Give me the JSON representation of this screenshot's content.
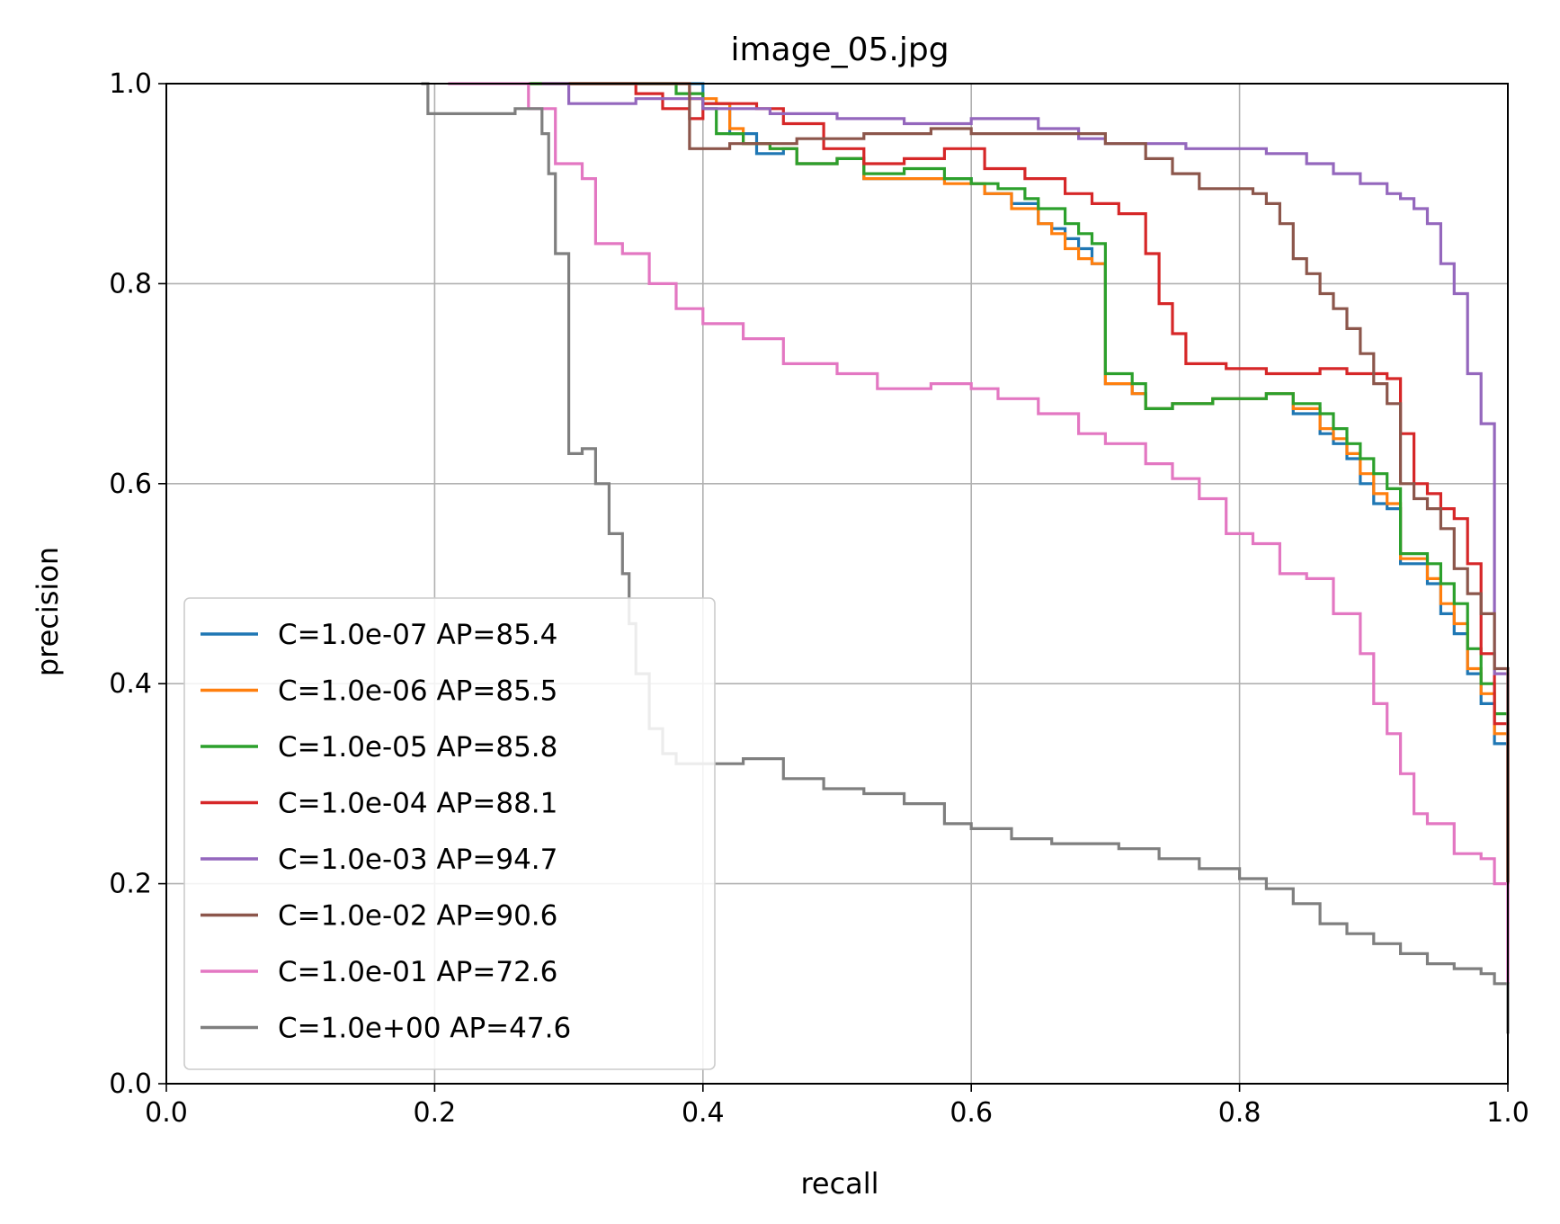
{
  "chart_data": {
    "type": "line",
    "title": "image_05.jpg",
    "xlabel": "recall",
    "ylabel": "precision",
    "xlim": [
      0.0,
      1.0
    ],
    "ylim": [
      0.0,
      1.0
    ],
    "xticks": [
      "0.0",
      "0.2",
      "0.4",
      "0.6",
      "0.8",
      "1.0"
    ],
    "yticks": [
      "0.0",
      "0.2",
      "0.4",
      "0.6",
      "0.8",
      "1.0"
    ],
    "grid": true,
    "legend_position": "lower-left",
    "series": [
      {
        "name": "C=1.0e-07 AP=85.4",
        "color": "#1f77b4",
        "points": [
          [
            0.27,
            1.0
          ],
          [
            0.38,
            1.0
          ],
          [
            0.4,
            0.98
          ],
          [
            0.42,
            0.95
          ],
          [
            0.44,
            0.93
          ],
          [
            0.46,
            0.935
          ],
          [
            0.47,
            0.92
          ],
          [
            0.5,
            0.925
          ],
          [
            0.52,
            0.905
          ],
          [
            0.55,
            0.905
          ],
          [
            0.58,
            0.905
          ],
          [
            0.6,
            0.9
          ],
          [
            0.61,
            0.89
          ],
          [
            0.63,
            0.88
          ],
          [
            0.65,
            0.86
          ],
          [
            0.66,
            0.855
          ],
          [
            0.67,
            0.845
          ],
          [
            0.68,
            0.835
          ],
          [
            0.69,
            0.82
          ],
          [
            0.7,
            0.7
          ],
          [
            0.72,
            0.69
          ],
          [
            0.73,
            0.675
          ],
          [
            0.75,
            0.68
          ],
          [
            0.78,
            0.685
          ],
          [
            0.82,
            0.69
          ],
          [
            0.84,
            0.67
          ],
          [
            0.86,
            0.65
          ],
          [
            0.87,
            0.64
          ],
          [
            0.88,
            0.625
          ],
          [
            0.89,
            0.6
          ],
          [
            0.9,
            0.58
          ],
          [
            0.91,
            0.575
          ],
          [
            0.92,
            0.52
          ],
          [
            0.94,
            0.5
          ],
          [
            0.95,
            0.47
          ],
          [
            0.96,
            0.45
          ],
          [
            0.97,
            0.41
          ],
          [
            0.98,
            0.38
          ],
          [
            0.99,
            0.34
          ],
          [
            1.0,
            0.33
          ],
          [
            1.0,
            0.2
          ]
        ]
      },
      {
        "name": "C=1.0e-06 AP=85.5",
        "color": "#ff7f0e",
        "points": [
          [
            0.27,
            1.0
          ],
          [
            0.38,
            1.0
          ],
          [
            0.39,
            0.985
          ],
          [
            0.41,
            0.98
          ],
          [
            0.42,
            0.955
          ],
          [
            0.43,
            0.94
          ],
          [
            0.45,
            0.935
          ],
          [
            0.47,
            0.92
          ],
          [
            0.5,
            0.925
          ],
          [
            0.52,
            0.905
          ],
          [
            0.55,
            0.905
          ],
          [
            0.58,
            0.9
          ],
          [
            0.6,
            0.9
          ],
          [
            0.61,
            0.89
          ],
          [
            0.63,
            0.875
          ],
          [
            0.65,
            0.86
          ],
          [
            0.66,
            0.85
          ],
          [
            0.67,
            0.835
          ],
          [
            0.68,
            0.825
          ],
          [
            0.69,
            0.82
          ],
          [
            0.7,
            0.7
          ],
          [
            0.72,
            0.69
          ],
          [
            0.73,
            0.675
          ],
          [
            0.75,
            0.68
          ],
          [
            0.78,
            0.685
          ],
          [
            0.82,
            0.69
          ],
          [
            0.84,
            0.675
          ],
          [
            0.86,
            0.655
          ],
          [
            0.87,
            0.645
          ],
          [
            0.88,
            0.63
          ],
          [
            0.89,
            0.61
          ],
          [
            0.9,
            0.59
          ],
          [
            0.91,
            0.58
          ],
          [
            0.92,
            0.525
          ],
          [
            0.94,
            0.505
          ],
          [
            0.95,
            0.48
          ],
          [
            0.96,
            0.46
          ],
          [
            0.97,
            0.415
          ],
          [
            0.98,
            0.39
          ],
          [
            0.99,
            0.35
          ],
          [
            1.0,
            0.34
          ],
          [
            1.0,
            0.2
          ]
        ]
      },
      {
        "name": "C=1.0e-05 AP=85.8",
        "color": "#2ca02c",
        "points": [
          [
            0.27,
            1.0
          ],
          [
            0.37,
            1.0
          ],
          [
            0.38,
            0.99
          ],
          [
            0.4,
            0.975
          ],
          [
            0.41,
            0.95
          ],
          [
            0.43,
            0.94
          ],
          [
            0.45,
            0.935
          ],
          [
            0.47,
            0.92
          ],
          [
            0.5,
            0.925
          ],
          [
            0.52,
            0.91
          ],
          [
            0.55,
            0.915
          ],
          [
            0.58,
            0.905
          ],
          [
            0.6,
            0.9
          ],
          [
            0.62,
            0.895
          ],
          [
            0.64,
            0.885
          ],
          [
            0.65,
            0.875
          ],
          [
            0.67,
            0.86
          ],
          [
            0.68,
            0.85
          ],
          [
            0.69,
            0.84
          ],
          [
            0.7,
            0.71
          ],
          [
            0.72,
            0.7
          ],
          [
            0.73,
            0.675
          ],
          [
            0.75,
            0.68
          ],
          [
            0.78,
            0.685
          ],
          [
            0.82,
            0.69
          ],
          [
            0.84,
            0.68
          ],
          [
            0.86,
            0.67
          ],
          [
            0.87,
            0.655
          ],
          [
            0.88,
            0.64
          ],
          [
            0.89,
            0.625
          ],
          [
            0.9,
            0.61
          ],
          [
            0.91,
            0.595
          ],
          [
            0.92,
            0.53
          ],
          [
            0.94,
            0.52
          ],
          [
            0.95,
            0.5
          ],
          [
            0.96,
            0.48
          ],
          [
            0.97,
            0.435
          ],
          [
            0.98,
            0.4
          ],
          [
            0.99,
            0.37
          ],
          [
            1.0,
            0.35
          ],
          [
            1.0,
            0.2
          ]
        ]
      },
      {
        "name": "C=1.0e-04 AP=88.1",
        "color": "#d62728",
        "points": [
          [
            0.28,
            1.0
          ],
          [
            0.34,
            1.0
          ],
          [
            0.35,
            0.99
          ],
          [
            0.37,
            0.975
          ],
          [
            0.39,
            0.965
          ],
          [
            0.4,
            0.98
          ],
          [
            0.44,
            0.975
          ],
          [
            0.46,
            0.96
          ],
          [
            0.49,
            0.935
          ],
          [
            0.52,
            0.92
          ],
          [
            0.55,
            0.925
          ],
          [
            0.58,
            0.935
          ],
          [
            0.61,
            0.915
          ],
          [
            0.64,
            0.905
          ],
          [
            0.67,
            0.89
          ],
          [
            0.69,
            0.88
          ],
          [
            0.71,
            0.87
          ],
          [
            0.73,
            0.83
          ],
          [
            0.74,
            0.78
          ],
          [
            0.75,
            0.75
          ],
          [
            0.76,
            0.72
          ],
          [
            0.79,
            0.715
          ],
          [
            0.82,
            0.71
          ],
          [
            0.86,
            0.715
          ],
          [
            0.88,
            0.71
          ],
          [
            0.9,
            0.71
          ],
          [
            0.91,
            0.705
          ],
          [
            0.92,
            0.65
          ],
          [
            0.93,
            0.6
          ],
          [
            0.94,
            0.59
          ],
          [
            0.95,
            0.575
          ],
          [
            0.96,
            0.565
          ],
          [
            0.97,
            0.52
          ],
          [
            0.98,
            0.43
          ],
          [
            0.99,
            0.36
          ],
          [
            1.0,
            0.33
          ],
          [
            1.0,
            0.2
          ]
        ]
      },
      {
        "name": "C=1.0e-03 AP=94.7",
        "color": "#9467bd",
        "points": [
          [
            0.28,
            1.0
          ],
          [
            0.3,
            0.98
          ],
          [
            0.35,
            0.985
          ],
          [
            0.4,
            0.975
          ],
          [
            0.45,
            0.97
          ],
          [
            0.5,
            0.965
          ],
          [
            0.55,
            0.96
          ],
          [
            0.6,
            0.965
          ],
          [
            0.65,
            0.955
          ],
          [
            0.68,
            0.945
          ],
          [
            0.7,
            0.94
          ],
          [
            0.73,
            0.94
          ],
          [
            0.76,
            0.935
          ],
          [
            0.79,
            0.935
          ],
          [
            0.82,
            0.93
          ],
          [
            0.85,
            0.92
          ],
          [
            0.87,
            0.91
          ],
          [
            0.89,
            0.9
          ],
          [
            0.91,
            0.89
          ],
          [
            0.92,
            0.885
          ],
          [
            0.93,
            0.875
          ],
          [
            0.94,
            0.86
          ],
          [
            0.95,
            0.82
          ],
          [
            0.96,
            0.79
          ],
          [
            0.97,
            0.71
          ],
          [
            0.98,
            0.66
          ],
          [
            0.99,
            0.41
          ],
          [
            1.0,
            0.37
          ],
          [
            1.0,
            0.1
          ]
        ]
      },
      {
        "name": "C=1.0e-02 AP=90.6",
        "color": "#8c564b",
        "points": [
          [
            0.3,
            1.0
          ],
          [
            0.38,
            1.0
          ],
          [
            0.39,
            0.935
          ],
          [
            0.42,
            0.94
          ],
          [
            0.47,
            0.945
          ],
          [
            0.52,
            0.95
          ],
          [
            0.57,
            0.955
          ],
          [
            0.6,
            0.95
          ],
          [
            0.63,
            0.95
          ],
          [
            0.66,
            0.95
          ],
          [
            0.7,
            0.94
          ],
          [
            0.73,
            0.925
          ],
          [
            0.75,
            0.91
          ],
          [
            0.77,
            0.895
          ],
          [
            0.79,
            0.895
          ],
          [
            0.81,
            0.89
          ],
          [
            0.82,
            0.88
          ],
          [
            0.83,
            0.86
          ],
          [
            0.84,
            0.825
          ],
          [
            0.85,
            0.81
          ],
          [
            0.86,
            0.79
          ],
          [
            0.87,
            0.775
          ],
          [
            0.88,
            0.755
          ],
          [
            0.89,
            0.73
          ],
          [
            0.9,
            0.7
          ],
          [
            0.91,
            0.68
          ],
          [
            0.92,
            0.6
          ],
          [
            0.93,
            0.585
          ],
          [
            0.94,
            0.575
          ],
          [
            0.95,
            0.555
          ],
          [
            0.96,
            0.515
          ],
          [
            0.97,
            0.49
          ],
          [
            0.98,
            0.47
          ],
          [
            0.99,
            0.415
          ],
          [
            1.0,
            0.38
          ],
          [
            1.0,
            0.2
          ]
        ]
      },
      {
        "name": "C=1.0e-01 AP=72.6",
        "color": "#e377c2",
        "points": [
          [
            0.21,
            1.0
          ],
          [
            0.27,
            0.975
          ],
          [
            0.29,
            0.92
          ],
          [
            0.31,
            0.905
          ],
          [
            0.32,
            0.84
          ],
          [
            0.34,
            0.83
          ],
          [
            0.36,
            0.8
          ],
          [
            0.38,
            0.775
          ],
          [
            0.4,
            0.76
          ],
          [
            0.43,
            0.745
          ],
          [
            0.46,
            0.72
          ],
          [
            0.5,
            0.71
          ],
          [
            0.53,
            0.695
          ],
          [
            0.57,
            0.7
          ],
          [
            0.6,
            0.695
          ],
          [
            0.62,
            0.685
          ],
          [
            0.65,
            0.67
          ],
          [
            0.68,
            0.65
          ],
          [
            0.7,
            0.64
          ],
          [
            0.73,
            0.62
          ],
          [
            0.75,
            0.605
          ],
          [
            0.77,
            0.585
          ],
          [
            0.79,
            0.55
          ],
          [
            0.81,
            0.54
          ],
          [
            0.83,
            0.51
          ],
          [
            0.85,
            0.505
          ],
          [
            0.87,
            0.47
          ],
          [
            0.89,
            0.43
          ],
          [
            0.9,
            0.38
          ],
          [
            0.91,
            0.35
          ],
          [
            0.92,
            0.31
          ],
          [
            0.93,
            0.27
          ],
          [
            0.94,
            0.26
          ],
          [
            0.96,
            0.23
          ],
          [
            0.98,
            0.225
          ],
          [
            0.99,
            0.2
          ],
          [
            1.0,
            0.19
          ],
          [
            1.0,
            0.1
          ]
        ]
      },
      {
        "name": "C=1.0e+00 AP=47.6",
        "color": "#7f7f7f",
        "points": [
          [
            0.19,
            1.0
          ],
          [
            0.195,
            0.97
          ],
          [
            0.22,
            0.97
          ],
          [
            0.26,
            0.975
          ],
          [
            0.28,
            0.95
          ],
          [
            0.285,
            0.91
          ],
          [
            0.29,
            0.83
          ],
          [
            0.3,
            0.63
          ],
          [
            0.31,
            0.635
          ],
          [
            0.32,
            0.6
          ],
          [
            0.33,
            0.55
          ],
          [
            0.34,
            0.51
          ],
          [
            0.345,
            0.46
          ],
          [
            0.35,
            0.41
          ],
          [
            0.36,
            0.355
          ],
          [
            0.37,
            0.33
          ],
          [
            0.38,
            0.32
          ],
          [
            0.4,
            0.32
          ],
          [
            0.43,
            0.325
          ],
          [
            0.46,
            0.305
          ],
          [
            0.49,
            0.295
          ],
          [
            0.52,
            0.29
          ],
          [
            0.55,
            0.28
          ],
          [
            0.58,
            0.26
          ],
          [
            0.6,
            0.255
          ],
          [
            0.63,
            0.245
          ],
          [
            0.66,
            0.24
          ],
          [
            0.69,
            0.24
          ],
          [
            0.71,
            0.235
          ],
          [
            0.74,
            0.225
          ],
          [
            0.77,
            0.215
          ],
          [
            0.8,
            0.205
          ],
          [
            0.82,
            0.195
          ],
          [
            0.84,
            0.18
          ],
          [
            0.86,
            0.16
          ],
          [
            0.88,
            0.15
          ],
          [
            0.9,
            0.14
          ],
          [
            0.92,
            0.13
          ],
          [
            0.94,
            0.12
          ],
          [
            0.96,
            0.115
          ],
          [
            0.98,
            0.11
          ],
          [
            0.99,
            0.1
          ],
          [
            1.0,
            0.1
          ],
          [
            1.0,
            0.05
          ]
        ]
      }
    ]
  }
}
